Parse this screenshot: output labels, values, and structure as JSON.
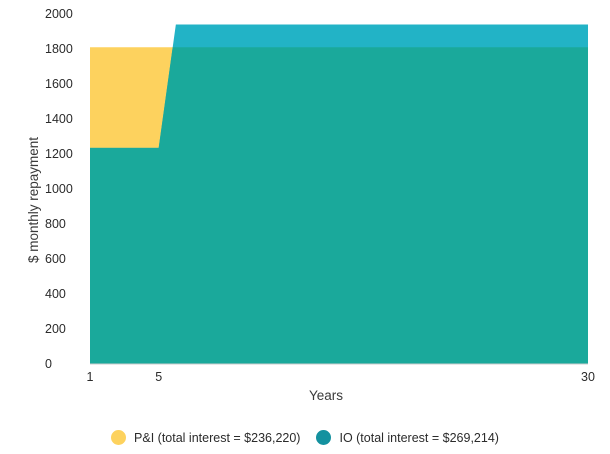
{
  "chart_data": {
    "type": "area",
    "xlabel": "Years",
    "ylabel": "$ monthly repayment",
    "xlim": [
      1,
      30
    ],
    "ylim": [
      0,
      2000
    ],
    "x_ticks": [
      1,
      5,
      30
    ],
    "y_ticks": [
      0,
      200,
      400,
      600,
      800,
      1000,
      1200,
      1400,
      1600,
      1800,
      2000
    ],
    "grid": false,
    "legend_position": "bottom",
    "series": [
      {
        "name": "P&I (total interest = $236,220)",
        "color": "#fdd25e",
        "x": [
          1,
          5,
          6,
          30
        ],
        "y": [
          1810,
          1810,
          1810,
          1810
        ]
      },
      {
        "name": "IO (total interest = $269,214)",
        "color": "#1aa99b",
        "x": [
          1,
          5,
          6,
          30
        ],
        "y": [
          1235,
          1235,
          1940,
          1940
        ]
      }
    ],
    "colors": {
      "io_dark": "#1aa99b",
      "io_top": "#22b3c6",
      "legend_io": "#14919f",
      "axis": "#cccccc"
    }
  }
}
